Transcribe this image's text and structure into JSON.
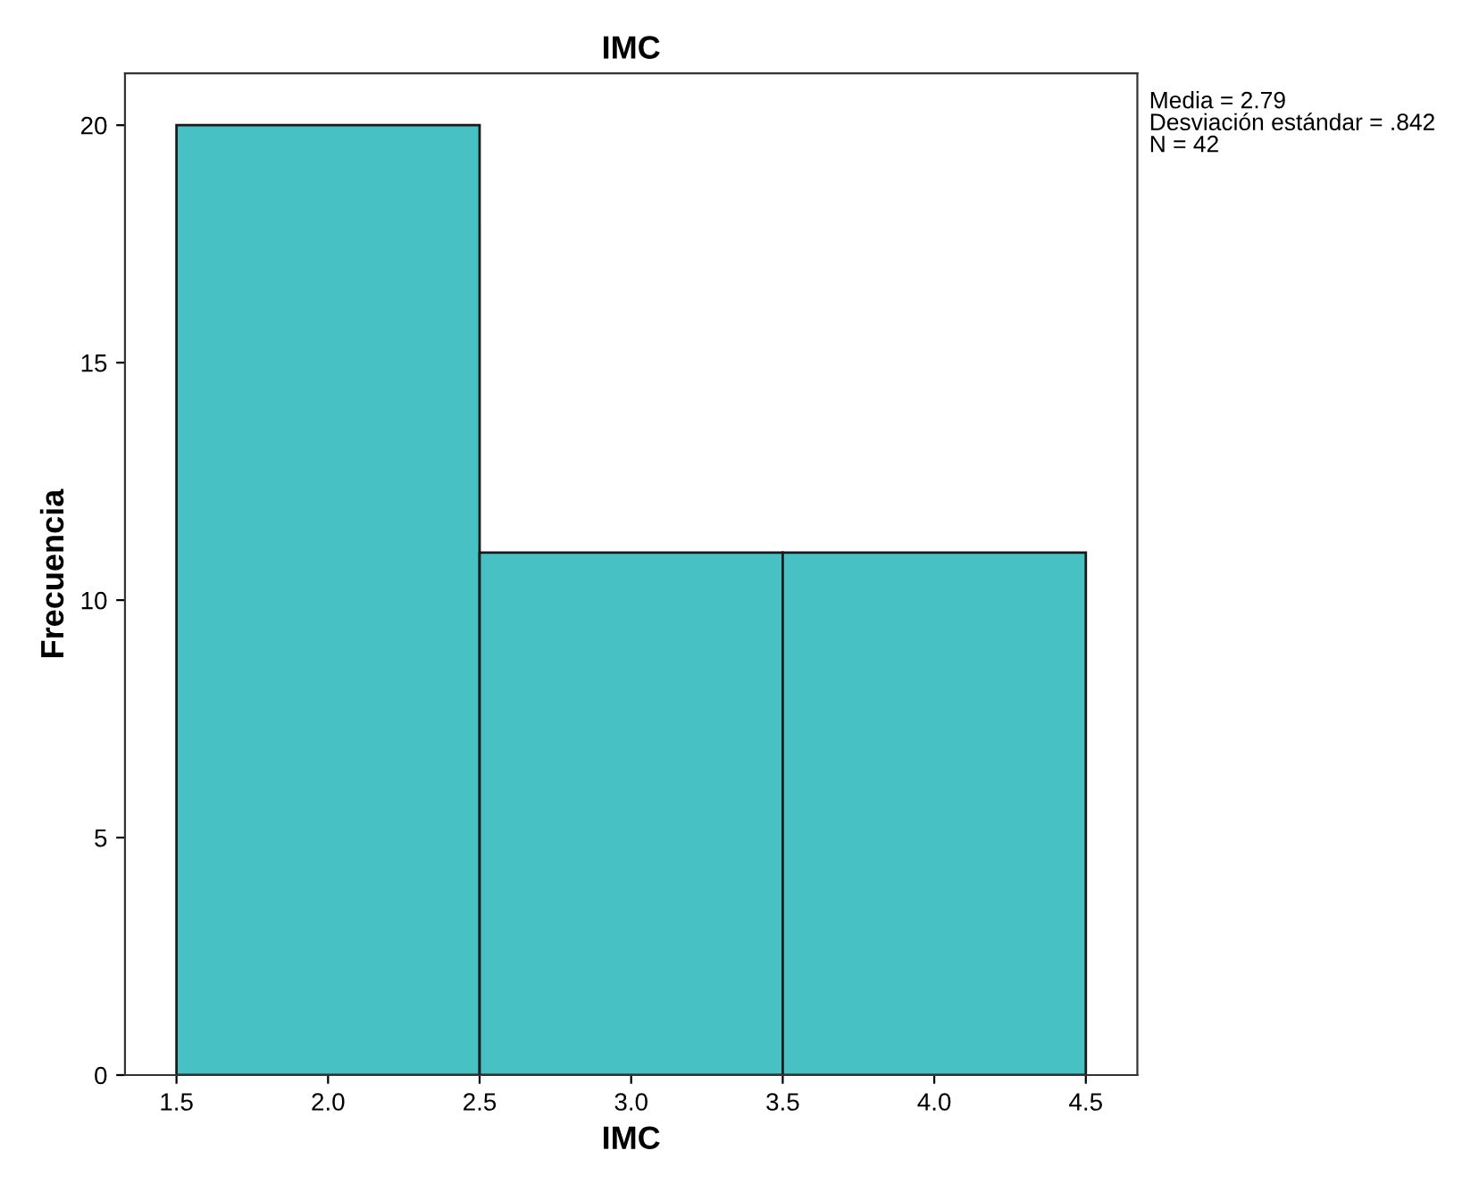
{
  "chart_data": {
    "type": "histogram",
    "title": "IMC",
    "xlabel": "IMC",
    "ylabel": "Frecuencia",
    "bins": [
      1.5,
      2.5,
      3.5,
      4.5
    ],
    "values": [
      20,
      11,
      11
    ],
    "color": "#47c1c4",
    "xlim": [
      1.33,
      4.67
    ],
    "ylim": [
      0,
      21.09
    ],
    "xticks": [
      1.5,
      {
        "value": 2.0,
        "label": "2.0"
      },
      2.5,
      {
        "value": 3.0,
        "label": "3.0"
      },
      3.5,
      {
        "value": 4.0,
        "label": "4.0"
      },
      4.5
    ],
    "yticks": [
      0,
      5,
      10,
      15,
      20
    ],
    "annotations": [
      "Media = 2.79",
      "Desviación estándar = .842",
      "N = 42"
    ],
    "grid": false,
    "legend": false
  }
}
